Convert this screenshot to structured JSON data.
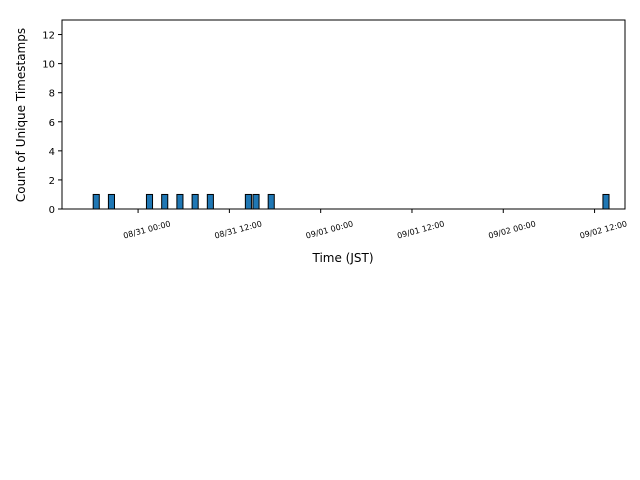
{
  "chart_data": {
    "type": "bar",
    "x": [
      "08/30 18:00",
      "08/30 20:00",
      "08/31 01:00",
      "08/31 03:00",
      "08/31 05:00",
      "08/31 07:00",
      "08/31 09:00",
      "08/31 14:00",
      "08/31 15:00",
      "08/31 17:00",
      "09/02 13:00"
    ],
    "values": [
      1,
      1,
      1,
      1,
      1,
      1,
      1,
      1,
      1,
      1,
      1
    ],
    "color": "#1f77b4",
    "edgecolor": "#000000",
    "xlabel": "Time (JST)",
    "ylabel": "Count of Unique Timestamps",
    "xlim": [
      "08/30 14:00",
      "09/02 16:00"
    ],
    "xticks": [
      "08/31 00:00",
      "08/31 12:00",
      "09/01 00:00",
      "09/01 12:00",
      "09/02 00:00",
      "09/02 12:00"
    ],
    "ylim": [
      0,
      13
    ],
    "yticks": [
      0,
      2,
      4,
      6,
      8,
      10,
      12
    ],
    "grid": false
  }
}
